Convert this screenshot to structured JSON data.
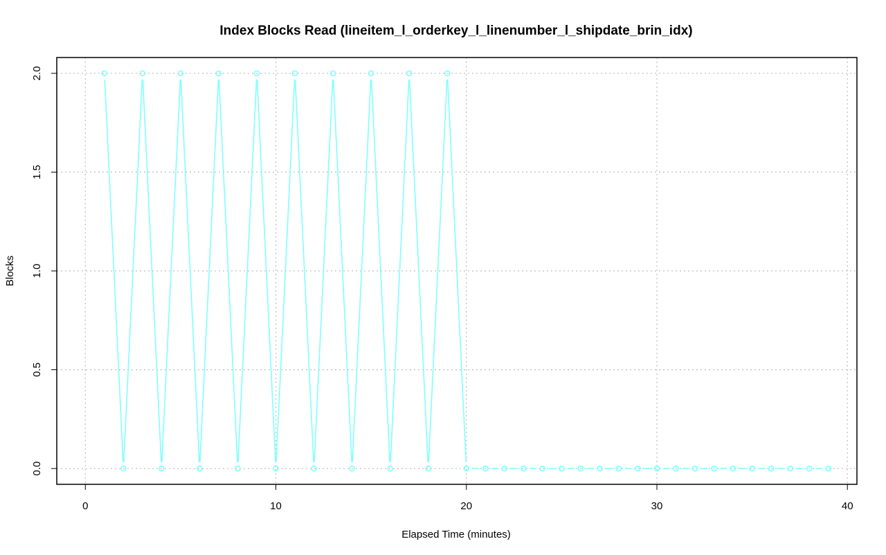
{
  "chart_data": {
    "type": "line",
    "title": "Index Blocks Read (lineitem_l_orderkey_l_linenumber_l_shipdate_brin_idx)",
    "xlabel": "Elapsed Time (minutes)",
    "ylabel": "Blocks",
    "xlim": [
      -1.5,
      40.5
    ],
    "ylim": [
      -0.08,
      2.08
    ],
    "xticks": [
      0,
      10,
      20,
      30,
      40
    ],
    "xtick_labels": [
      "0",
      "10",
      "20",
      "30",
      "40"
    ],
    "yticks": [
      0,
      0.5,
      1,
      1.5,
      2
    ],
    "ytick_labels": [
      "0.0",
      "0.5",
      "1.0",
      "1.5",
      "2.0"
    ],
    "grid": true,
    "color": "#7fffff",
    "x": [
      1,
      2,
      3,
      4,
      5,
      6,
      7,
      8,
      9,
      10,
      11,
      12,
      13,
      14,
      15,
      16,
      17,
      18,
      19,
      20,
      21,
      22,
      23,
      24,
      25,
      26,
      27,
      28,
      29,
      30,
      31,
      32,
      33,
      34,
      35,
      36,
      37,
      38,
      39
    ],
    "y": [
      2,
      0,
      2,
      0,
      2,
      0,
      2,
      0,
      2,
      0,
      2,
      0,
      2,
      0,
      2,
      0,
      2,
      0,
      2,
      0,
      0,
      0,
      0,
      0,
      0,
      0,
      0,
      0,
      0,
      0,
      0,
      0,
      0,
      0,
      0,
      0,
      0,
      0,
      0
    ]
  }
}
